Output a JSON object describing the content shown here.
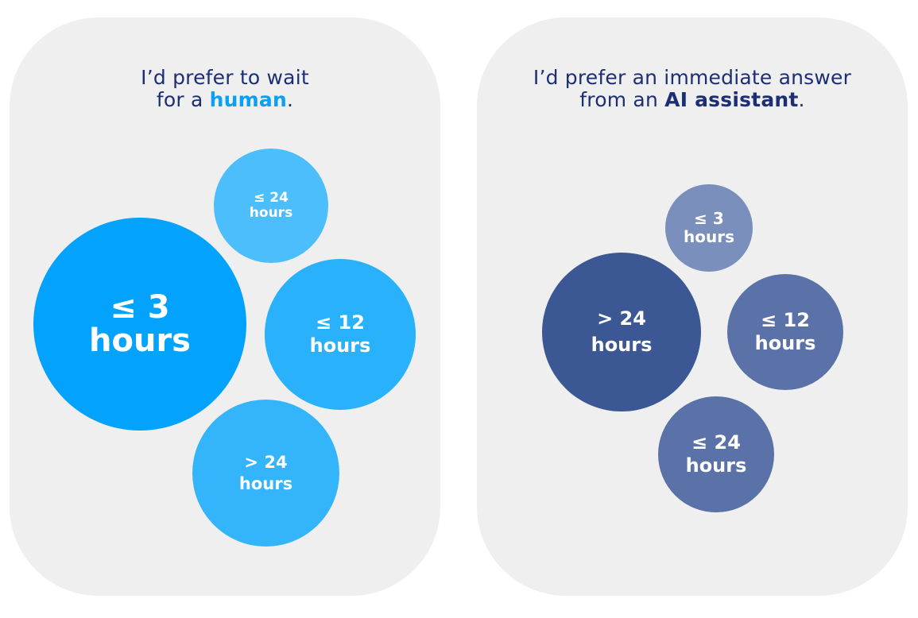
{
  "colors": {
    "panel_bg": "#efeff0",
    "heading_text": "#1c2f72",
    "human_accent": "#0aa0f3",
    "ai_accent": "#1c2f72"
  },
  "panels": [
    {
      "id": "human",
      "heading": {
        "line1": "I’d prefer to wait",
        "line2_prefix": "for a ",
        "line2_emphasis": "human",
        "line2_suffix": "."
      },
      "bubbles": [
        {
          "label_top": "≤ 3",
          "label_bottom": "hours",
          "color": "#03a2fc"
        },
        {
          "label_top": "≤ 24",
          "label_bottom": "hours",
          "color": "#4cbefb"
        },
        {
          "label_top": "≤ 12",
          "label_bottom": "hours",
          "color": "#29b2fb"
        },
        {
          "label_top": "> 24",
          "label_bottom": "hours",
          "color": "#33b4fb"
        }
      ]
    },
    {
      "id": "ai",
      "heading": {
        "line1": "I’d prefer an immediate answer",
        "line2_prefix": "from an ",
        "line2_emphasis": "AI assistant",
        "line2_suffix": "."
      },
      "bubbles": [
        {
          "label_top": "> 24",
          "label_bottom": "hours",
          "color": "#3b5894"
        },
        {
          "label_top": "≤ 3",
          "label_bottom": "hours",
          "color": "#7a8fbc"
        },
        {
          "label_top": "≤ 12",
          "label_bottom": "hours",
          "color": "#5a72a7"
        },
        {
          "label_top": "≤ 24",
          "label_bottom": "hours",
          "color": "#5a72a7"
        }
      ]
    }
  ]
}
